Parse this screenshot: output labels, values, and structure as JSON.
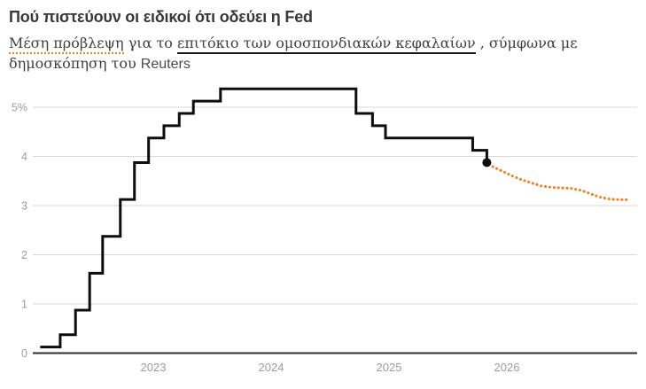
{
  "header": {
    "title": "Πού πιστεύουν οι ειδικοί ότι οδεύει η Fed",
    "subtitle": {
      "term1": "Μέση πρόβλεψη",
      "mid": " για το ",
      "term2": "επιτόκιο των ομοσπονδιακών κεφαλαίων",
      "tail1": " , σύμφωνα με",
      "tail2": "δημοσκόπηση του ",
      "source": "Reuters"
    }
  },
  "colors": {
    "accent_orange": "#ee8124",
    "line_black": "#0d0d0d",
    "grid": "#d7d7d7",
    "axis_baseline": "#2d2d2d",
    "axis_text": "#9c9c9c"
  },
  "chart_data": {
    "type": "line",
    "title": "Πού πιστεύουν οι ειδικοί ότι οδεύει η Fed",
    "subtitle": "Μέση πρόβλεψη για το επιτόκιο των ομοσπονδιακών κεφαλαίων , σύμφωνα με δημοσκόπηση του Reuters",
    "unit": "%",
    "xlabel": "",
    "ylabel": "",
    "ylim": [
      0,
      5.6
    ],
    "xlim": [
      2022.0,
      2027.1
    ],
    "grid": "horizontal",
    "legend": "none",
    "yticks": [
      {
        "v": 0,
        "label": "0"
      },
      {
        "v": 1,
        "label": "1"
      },
      {
        "v": 2,
        "label": "2"
      },
      {
        "v": 3,
        "label": "3"
      },
      {
        "v": 4,
        "label": "4"
      },
      {
        "v": 5,
        "label": "5%"
      }
    ],
    "xticks": [
      {
        "v": 2023,
        "label": "2023"
      },
      {
        "v": 2024,
        "label": "2024"
      },
      {
        "v": 2025,
        "label": "2025"
      },
      {
        "v": 2026,
        "label": "2026"
      }
    ],
    "series": [
      {
        "name": "actual",
        "style": "step",
        "color": "#0d0d0d",
        "points": [
          [
            2022.04,
            0.125
          ],
          [
            2022.21,
            0.375
          ],
          [
            2022.34,
            0.875
          ],
          [
            2022.46,
            1.625
          ],
          [
            2022.57,
            2.375
          ],
          [
            2022.72,
            3.125
          ],
          [
            2022.84,
            3.875
          ],
          [
            2022.96,
            4.375
          ],
          [
            2023.09,
            4.625
          ],
          [
            2023.22,
            4.875
          ],
          [
            2023.34,
            5.125
          ],
          [
            2023.57,
            5.375
          ],
          [
            2024.72,
            4.875
          ],
          [
            2024.86,
            4.625
          ],
          [
            2024.97,
            4.375
          ],
          [
            2025.71,
            4.125
          ],
          [
            2025.83,
            3.875
          ]
        ]
      },
      {
        "name": "forecast",
        "style": "dotted",
        "color": "#ee8124",
        "points": [
          [
            2025.88,
            3.79
          ],
          [
            2025.96,
            3.7
          ],
          [
            2026.04,
            3.61
          ],
          [
            2026.12,
            3.53
          ],
          [
            2026.21,
            3.46
          ],
          [
            2026.29,
            3.4
          ],
          [
            2026.38,
            3.37
          ],
          [
            2026.46,
            3.36
          ],
          [
            2026.54,
            3.35
          ],
          [
            2026.63,
            3.31
          ],
          [
            2026.71,
            3.24
          ],
          [
            2026.79,
            3.17
          ],
          [
            2026.88,
            3.13
          ],
          [
            2026.96,
            3.12
          ],
          [
            2027.04,
            3.12
          ]
        ]
      }
    ],
    "marker": {
      "x": 2025.83,
      "v": 3.875,
      "color": "#0d0d0d"
    }
  }
}
